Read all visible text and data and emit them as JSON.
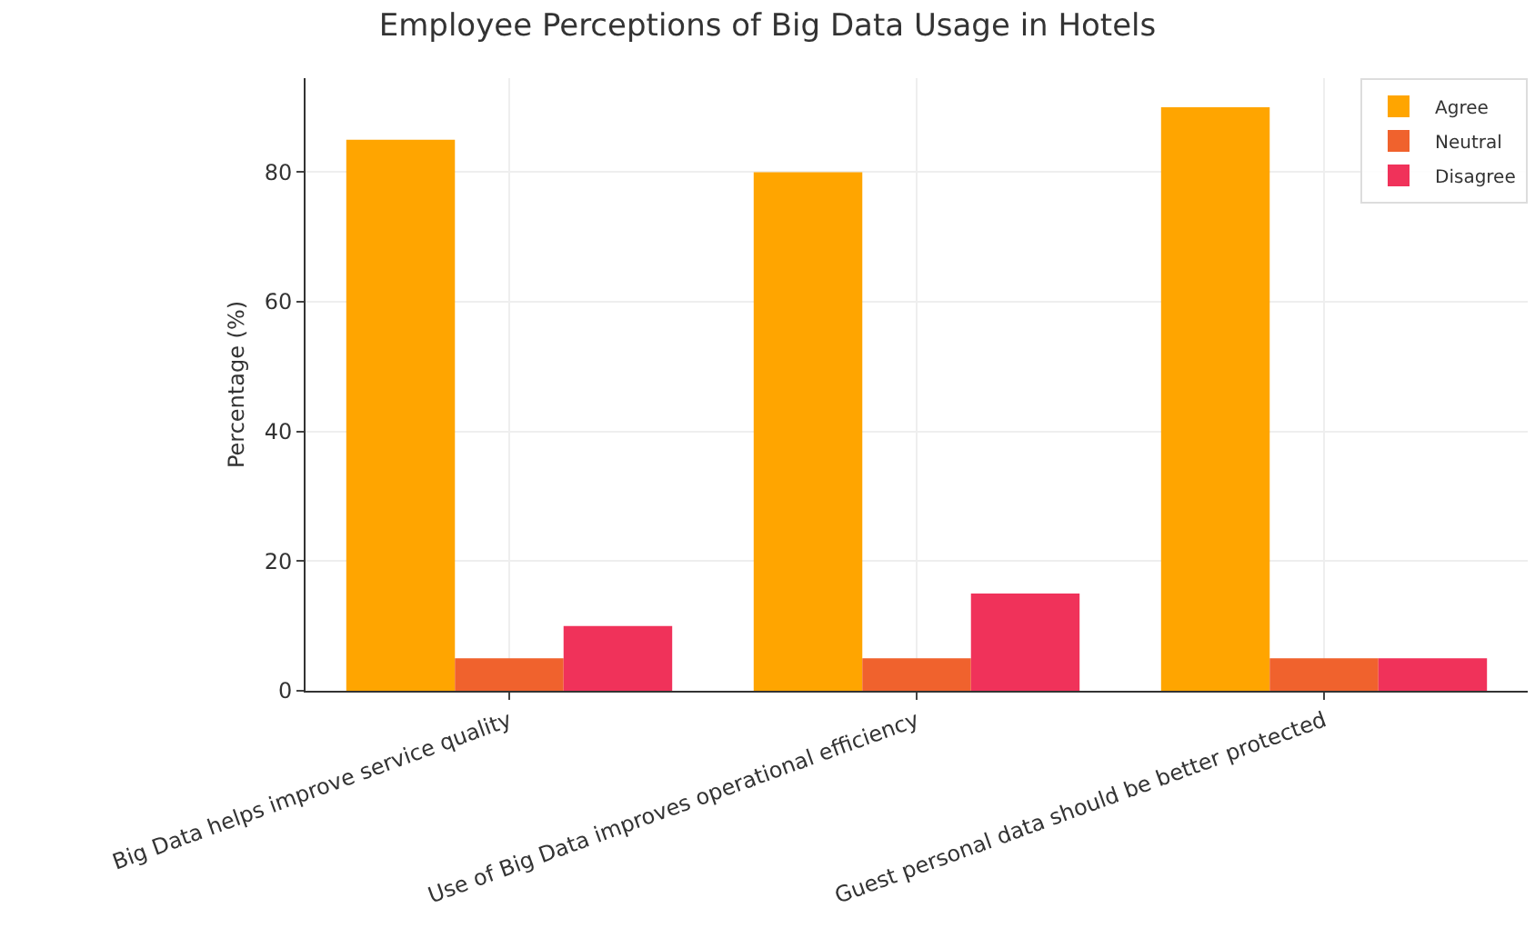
{
  "chart_data": {
    "type": "bar",
    "title": "Employee Perceptions of Big Data Usage in Hotels",
    "ylabel": "Percentage (%)",
    "categories": [
      "Big Data helps improve service quality",
      "Use of Big Data improves operational efficiency",
      "Guest personal data should be better protected"
    ],
    "series": [
      {
        "name": "Agree",
        "color": "#ffa500",
        "values": [
          85,
          80,
          90
        ]
      },
      {
        "name": "Neutral",
        "color": "#f0622d",
        "values": [
          5,
          5,
          5
        ]
      },
      {
        "name": "Disagree",
        "color": "#f0325a",
        "values": [
          10,
          15,
          5
        ]
      }
    ],
    "ylim": [
      0,
      94.5
    ],
    "yticks": [
      0,
      20,
      40,
      60,
      80
    ],
    "grid": true,
    "legend": "top right"
  }
}
